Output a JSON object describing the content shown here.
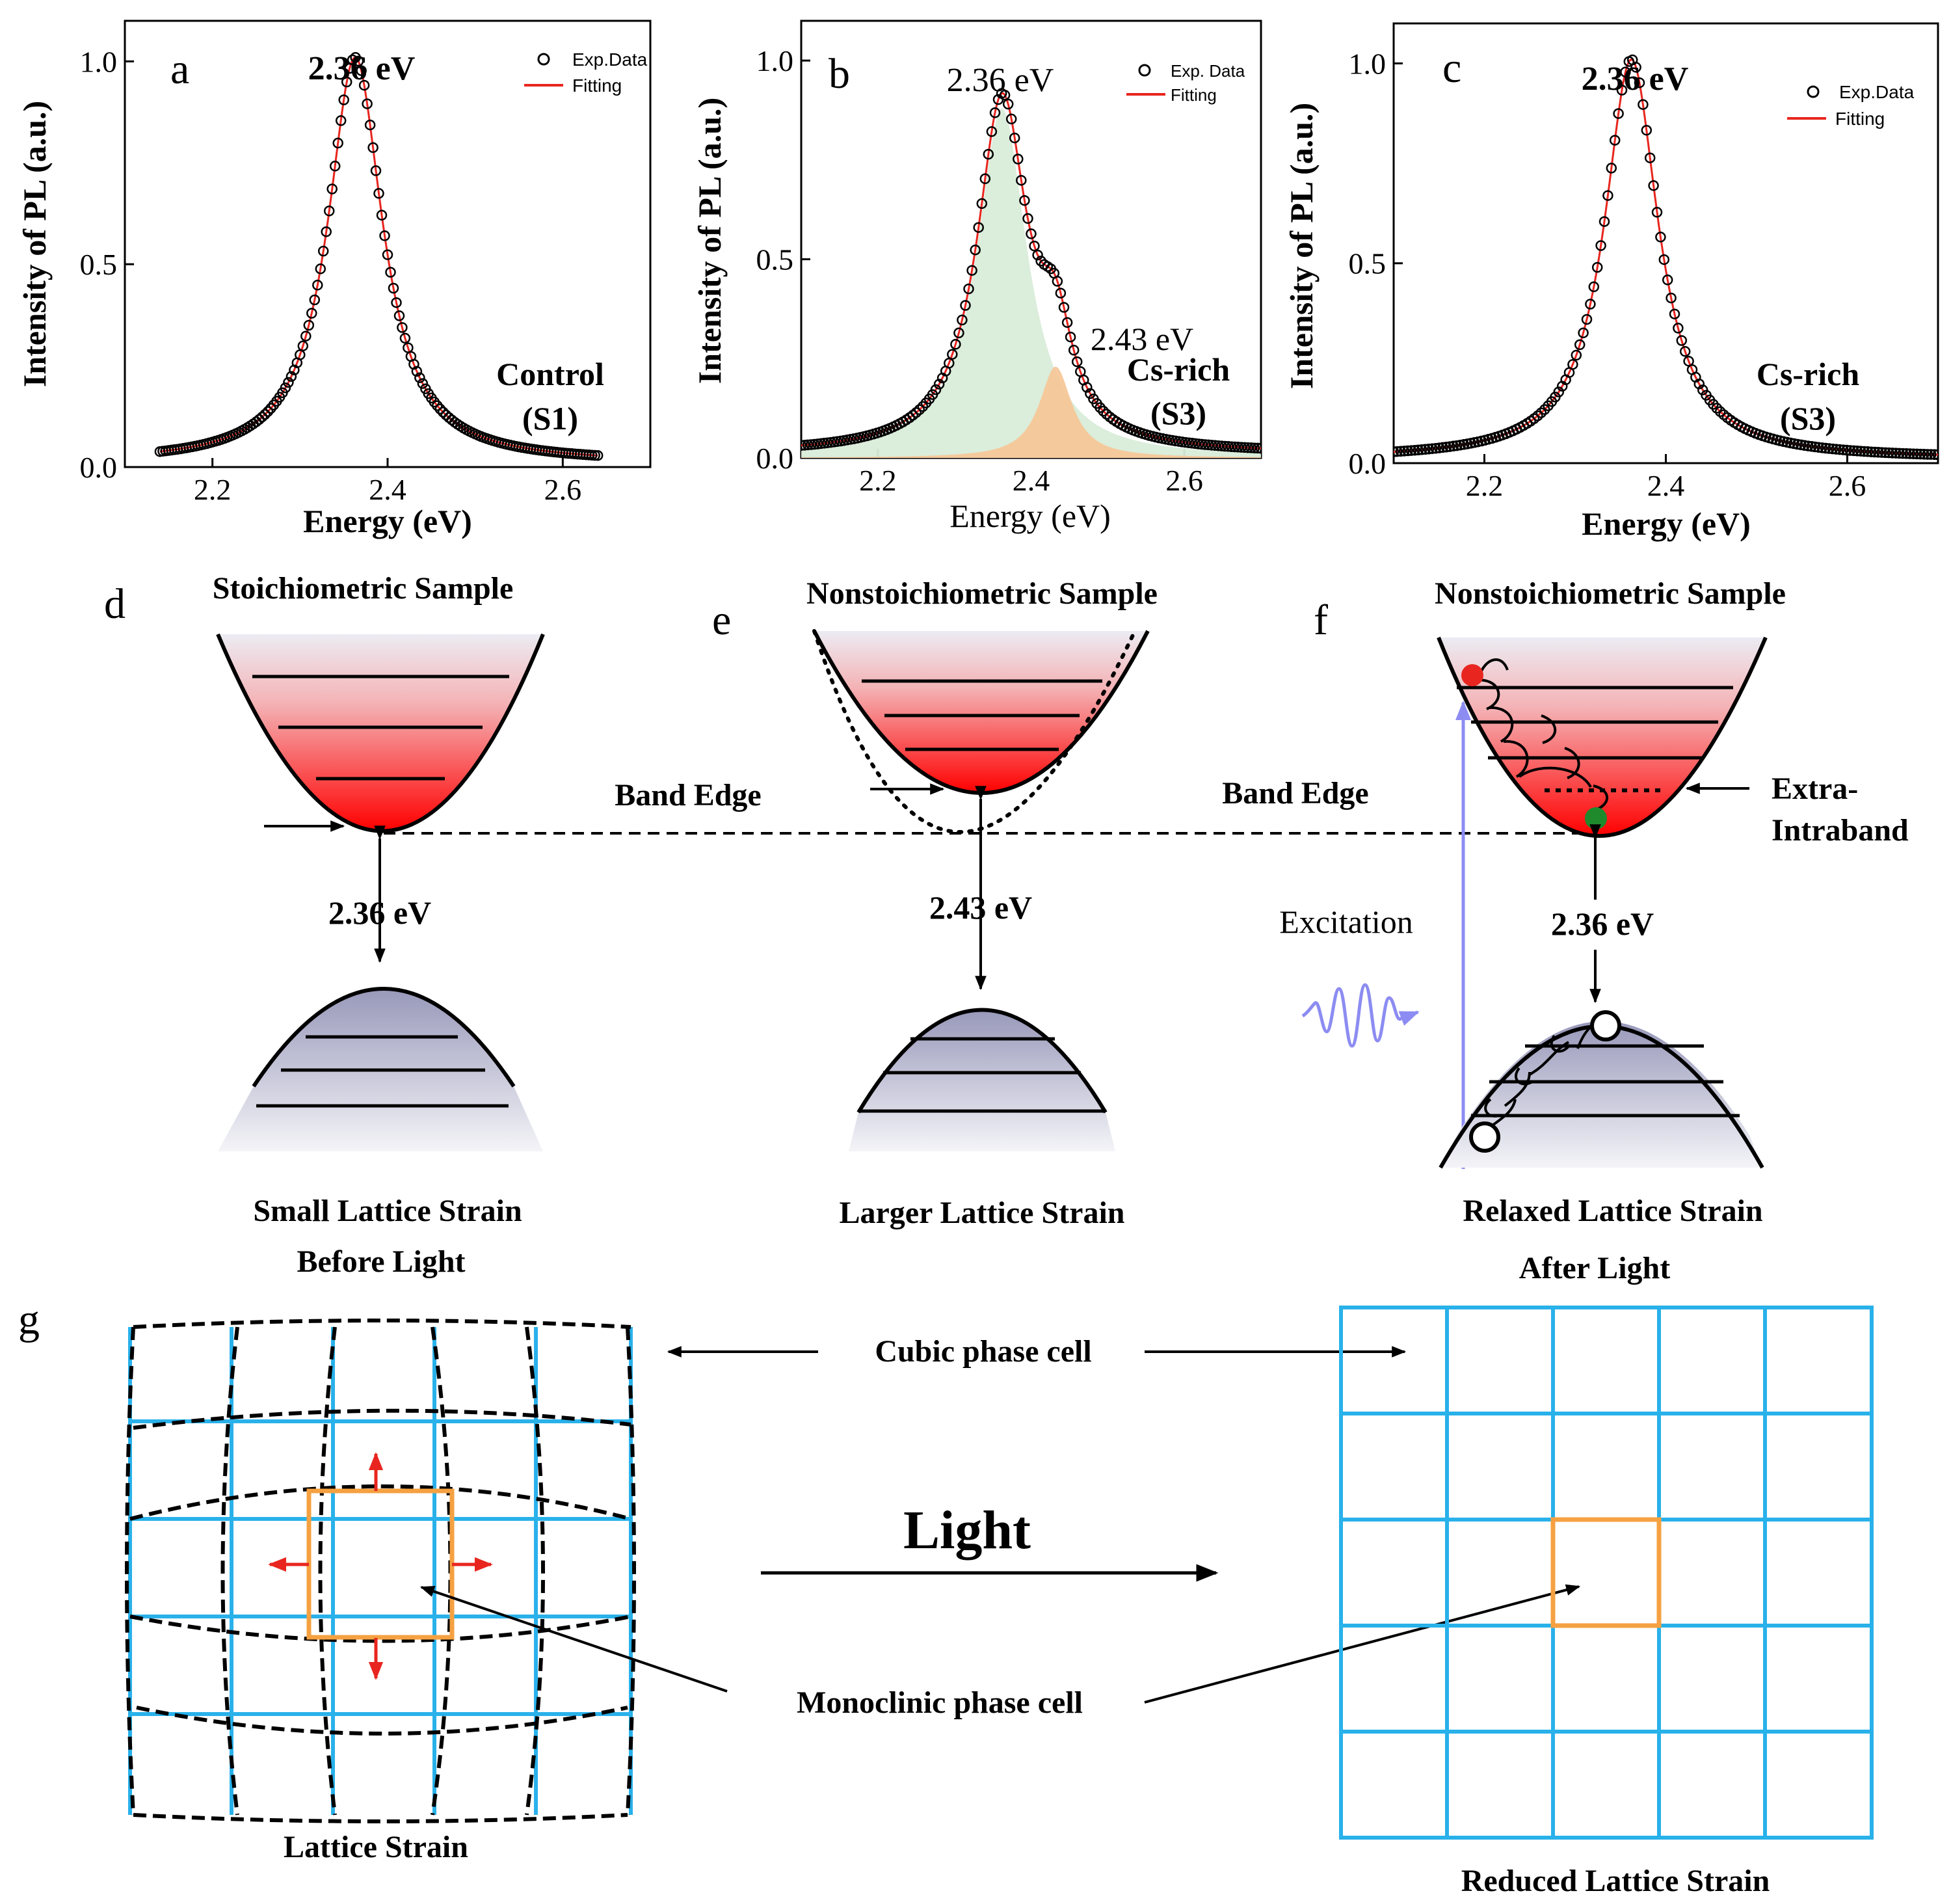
{
  "panel_letters": [
    "a",
    "b",
    "c",
    "d",
    "e",
    "f",
    "g"
  ],
  "chart_data": [
    {
      "panel": "a",
      "type": "line",
      "title": "",
      "xlabel": "Energy (eV)",
      "ylabel": "Intensity of PL (a.u.)",
      "xlim": [
        2.1,
        2.7
      ],
      "ylim": [
        0.0,
        1.1
      ],
      "xticks": [
        2.2,
        2.4,
        2.6
      ],
      "xtick_labels": [
        "2.2",
        "2.4",
        "2.6"
      ],
      "yticks": [
        0.0,
        0.5,
        1.0
      ],
      "ytick_labels": [
        "0.0",
        "0.5",
        "1.0"
      ],
      "data_range": [
        2.14,
        2.64
      ],
      "peak_center": 2.363,
      "peak_label": "2.36 eV",
      "peak_hwhm": 0.038,
      "sample_label": "Control",
      "sample_id": "(S1)",
      "legend": [
        {
          "label": "Exp.Data",
          "marker": "open-circle",
          "color": "#000000"
        },
        {
          "label": "Fitting",
          "marker": "line",
          "color": "#e8261f"
        }
      ],
      "components": []
    },
    {
      "panel": "b",
      "type": "line",
      "title": "",
      "xlabel": "Energy (eV)",
      "ylabel": "Intensity of PL (a.u.)",
      "xlim": [
        2.1,
        2.7
      ],
      "ylim": [
        0.0,
        1.1
      ],
      "xticks": [
        2.2,
        2.4,
        2.6
      ],
      "xtick_labels": [
        "2.2",
        "2.4",
        "2.6"
      ],
      "yticks": [
        0.0,
        0.5,
        1.0
      ],
      "ytick_labels": [
        "0.0",
        "0.5",
        "1.0"
      ],
      "data_range": [
        2.1,
        2.7
      ],
      "peak_center": 2.363,
      "peak_label": "2.36 eV",
      "peak_hwhm": 0.046,
      "sample_label": "Cs-rich",
      "sample_id": "(S3)",
      "secondary_peak_label": "2.43 eV",
      "legend": [
        {
          "label": "Exp. Data",
          "marker": "open-circle",
          "color": "#000000"
        },
        {
          "label": "Fitting",
          "marker": "line",
          "color": "#e8261f"
        }
      ],
      "components": [
        {
          "center": 2.362,
          "height": 0.88,
          "hwhm": 0.04,
          "fill": "#d9ecd9"
        },
        {
          "center": 2.432,
          "height": 0.23,
          "hwhm": 0.026,
          "fill": "#f5c89a"
        }
      ]
    },
    {
      "panel": "c",
      "type": "line",
      "title": "",
      "xlabel": "Energy (eV)",
      "ylabel": "Intensity of PL (a.u.)",
      "xlim": [
        2.1,
        2.7
      ],
      "ylim": [
        0.0,
        1.1
      ],
      "xticks": [
        2.2,
        2.4,
        2.6
      ],
      "xtick_labels": [
        "2.2",
        "2.4",
        "2.6"
      ],
      "yticks": [
        0.0,
        0.5,
        1.0
      ],
      "ytick_labels": [
        "0.0",
        "0.5",
        "1.0"
      ],
      "data_range": [
        2.1,
        2.7
      ],
      "peak_center": 2.362,
      "peak_label": "2.36 eV",
      "peak_hwhm": 0.036,
      "sample_label": "Cs-rich",
      "sample_id": "(S3)",
      "legend": [
        {
          "label": "Exp.Data",
          "marker": "open-circle",
          "color": "#000000"
        },
        {
          "label": "Fitting",
          "marker": "line",
          "color": "#e8261f"
        }
      ],
      "components": []
    }
  ],
  "band_diagrams": {
    "d": {
      "title": "Stoichiometric Sample",
      "gap_label": "2.36 eV",
      "edge_label": "Band Edge",
      "caption_1": "Small Lattice Strain",
      "caption_2": "Before Light"
    },
    "e": {
      "title": "Nonstoichiometric Sample",
      "gap_label": "2.43 eV",
      "caption_1": "Larger Lattice Strain"
    },
    "f": {
      "title": "Nonstoichiometric Sample",
      "gap_label": "2.36 eV",
      "edge_label": "Band Edge",
      "intraband_label_1": "Extra-",
      "intraband_label_2": "Intraband",
      "excitation_label": "Excitation",
      "caption_1": "Relaxed Lattice Strain",
      "caption_2": "After Light"
    }
  },
  "lattice": {
    "cubic_label": "Cubic phase cell",
    "monoclinic_label": "Monoclinic phase cell",
    "light_label": "Light",
    "left_caption": "Lattice Strain",
    "right_caption": "Reduced Lattice Strain"
  },
  "colors": {
    "conduction_top": "#eeeef4",
    "conduction_bottom": "#ff0000",
    "valence_top": "#9c9cbc",
    "valence_bottom": "#f2f2f6",
    "grid_blue": "#29b1ea",
    "cell_orange": "#f5a142",
    "strain_arrow": "#e8261f",
    "electron": "#e8261f",
    "relaxed_electron": "#1e8a2c",
    "excitation": "#8c8cf2",
    "fit_line": "#e8261f"
  }
}
